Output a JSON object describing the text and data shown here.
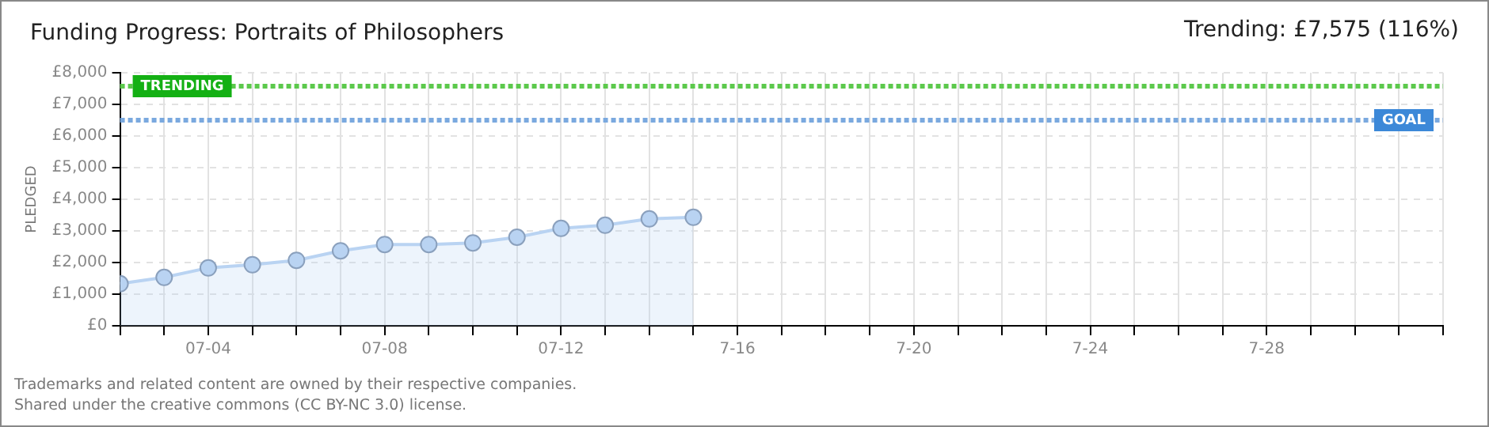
{
  "chart_data": {
    "type": "area",
    "title": "Funding Progress: Portraits of Philosophers",
    "subtitle": "Trending: £7,575 (116%)",
    "ylabel": "PLEDGED",
    "annotations": [
      "Trademarks and related content are owned by their respective companies.",
      "Shared under the creative commons (CC BY-NC 3.0) license."
    ],
    "x": [
      "--07-02",
      "--07-03",
      "--07-04",
      "--07-05",
      "--07-06",
      "--07-07",
      "--07-08",
      "--07-09",
      "--07-10",
      "--07-11",
      "--07-12",
      "--07-13",
      "--07-14",
      "--07-15"
    ],
    "series": [
      {
        "color": "#b9d3f2",
        "values": [
          1330,
          1530,
          1830,
          1930,
          2070,
          2370,
          2570,
          2570,
          2620,
          2800,
          3080,
          3180,
          3380,
          3430
        ]
      }
    ],
    "xlim": [
      "--07-02",
      "--08-01"
    ],
    "xticks": [
      {
        "value": "--07-02",
        "label": null
      },
      {
        "value": "--07-03",
        "label": null
      },
      {
        "value": "--07-04",
        "label": "07-04"
      },
      {
        "value": "--07-05",
        "label": null
      },
      {
        "value": "--07-06",
        "label": null
      },
      {
        "value": "--07-07",
        "label": null
      },
      {
        "value": "--07-08",
        "label": "07-08"
      },
      {
        "value": "--07-09",
        "label": null
      },
      {
        "value": "--07-10",
        "label": null
      },
      {
        "value": "--07-11",
        "label": null
      },
      {
        "value": "--07-12",
        "label": "07-12"
      },
      {
        "value": "--07-13",
        "label": null
      },
      {
        "value": "--07-14",
        "label": null
      },
      {
        "value": "--07-15",
        "label": null
      },
      {
        "value": "--07-16",
        "label": "7-16"
      },
      {
        "value": "--07-17",
        "label": null
      },
      {
        "value": "--07-18",
        "label": null
      },
      {
        "value": "--07-19",
        "label": null
      },
      {
        "value": "--07-20",
        "label": "7-20"
      },
      {
        "value": "--07-21",
        "label": null
      },
      {
        "value": "--07-22",
        "label": null
      },
      {
        "value": "--07-23",
        "label": null
      },
      {
        "value": "--07-24",
        "label": "7-24"
      },
      {
        "value": "--07-25",
        "label": null
      },
      {
        "value": "--07-26",
        "label": null
      },
      {
        "value": "--07-27",
        "label": null
      },
      {
        "value": "--07-28",
        "label": "7-28"
      },
      {
        "value": "--07-29",
        "label": null
      },
      {
        "value": "--07-30",
        "label": null
      },
      {
        "value": "--07-31",
        "label": null
      },
      {
        "value": "--08-01",
        "label": null
      }
    ],
    "ylim": [
      0,
      8000
    ],
    "yticks": [
      {
        "value": 0,
        "label": "£0"
      },
      {
        "value": 1000,
        "label": "£1,000"
      },
      {
        "value": 2000,
        "label": "£2,000"
      },
      {
        "value": 3000,
        "label": "£3,000"
      },
      {
        "value": 4000,
        "label": "£4,000"
      },
      {
        "value": 5000,
        "label": "£5,000"
      },
      {
        "value": 6000,
        "label": "£6,000"
      },
      {
        "value": 7000,
        "label": "£7,000"
      },
      {
        "value": 8000,
        "label": "£8,000"
      }
    ],
    "ref_lines": [
      {
        "axis": "y",
        "value": 7575,
        "label": "TRENDING",
        "color": "#5cc94c",
        "line_style": "dotted"
      },
      {
        "axis": "y",
        "value": 6500,
        "label": "GOAL",
        "color": "#7aa9df",
        "line_style": "dotted"
      }
    ],
    "grid": true,
    "marker": "circle",
    "legend": false
  }
}
